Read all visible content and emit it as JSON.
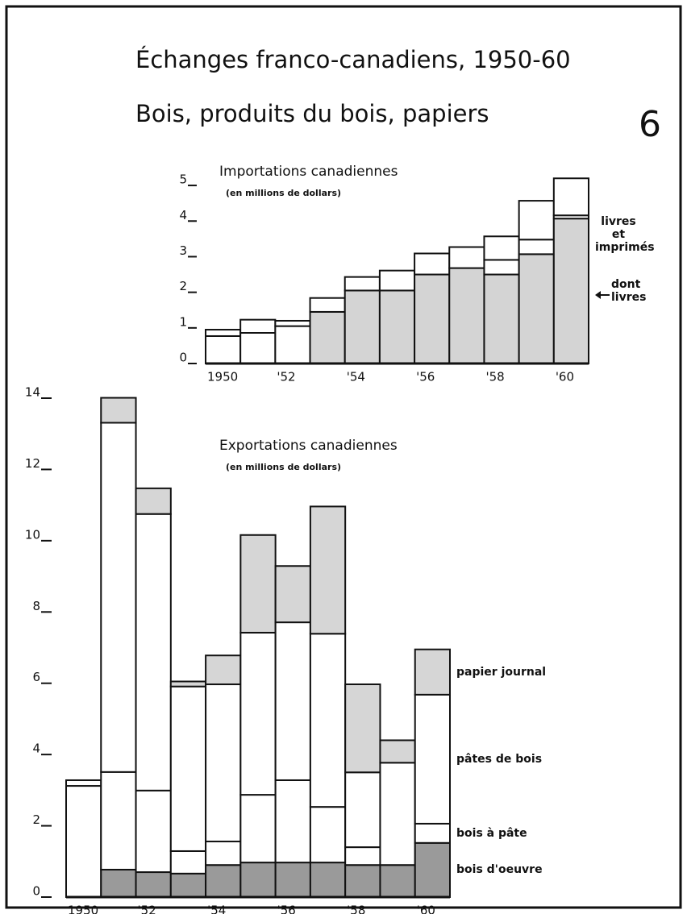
{
  "title": "Échanges franco-canadiens, 1950-60",
  "subtitle": "Bois, produits du bois, papiers",
  "figure_number": "6",
  "chart_data": [
    {
      "type": "stacked_bar",
      "title": "Importations canadiennes",
      "subtitle": "(en millions de dollars)",
      "categories": [
        "1950",
        null,
        "'52",
        null,
        "'54",
        null,
        "'56",
        null,
        "'58",
        null,
        "'60"
      ],
      "series": [
        {
          "name": "dont livres",
          "color": "#d4d4d4",
          "values": [
            0,
            0,
            0,
            1.45,
            2.05,
            2.05,
            2.5,
            2.68,
            2.5,
            3.07,
            4.07
          ]
        },
        {
          "name": "livres et imprimés",
          "color": "#ffffff",
          "values": [
            0.77,
            0.86,
            1.05,
            0,
            0,
            0,
            0,
            0,
            0.41,
            0.41,
            0.09
          ]
        },
        {
          "color": "#ffffff",
          "values": [
            0.18,
            0.37,
            0.15,
            0.39,
            0.38,
            0.56,
            0.59,
            0.59,
            0.66,
            1.09,
            1.04
          ]
        }
      ],
      "ylim": [
        0,
        5.5
      ],
      "yticks": [
        0,
        1,
        2,
        3,
        4,
        5
      ]
    },
    {
      "type": "stacked_bar",
      "title": "Exportations canadiennes",
      "subtitle": "(en millions de dollars)",
      "categories": [
        "1950",
        null,
        "'52",
        null,
        "'54",
        null,
        "'56",
        null,
        "'58",
        null,
        "'60"
      ],
      "series": [
        {
          "name": "bois d'oeuvre",
          "color": "#9a9a9a",
          "values": [
            0,
            0.77,
            0.7,
            0.66,
            0.9,
            0.97,
            0.97,
            0.97,
            0.9,
            0.9,
            1.52
          ]
        },
        {
          "name": "bois à pâte",
          "color": "#ffffff",
          "values": [
            3.12,
            2.74,
            2.29,
            0.63,
            0.66,
            1.9,
            2.31,
            1.56,
            0.5,
            0,
            0.54
          ]
        },
        {
          "name": "pâtes de bois",
          "color": "#ffffff",
          "values": [
            0.16,
            9.8,
            7.76,
            4.62,
            4.41,
            4.55,
            4.43,
            4.86,
            2.1,
            2.87,
            3.62
          ]
        },
        {
          "name": "papier journal",
          "color": "#d6d6d6",
          "values": [
            0,
            0.7,
            0.72,
            0.14,
            0.81,
            2.74,
            1.58,
            3.57,
            2.47,
            0.63,
            1.27
          ]
        }
      ],
      "ylim": [
        0,
        14
      ],
      "yticks": [
        0,
        2,
        4,
        6,
        8,
        10,
        12,
        14
      ]
    }
  ]
}
